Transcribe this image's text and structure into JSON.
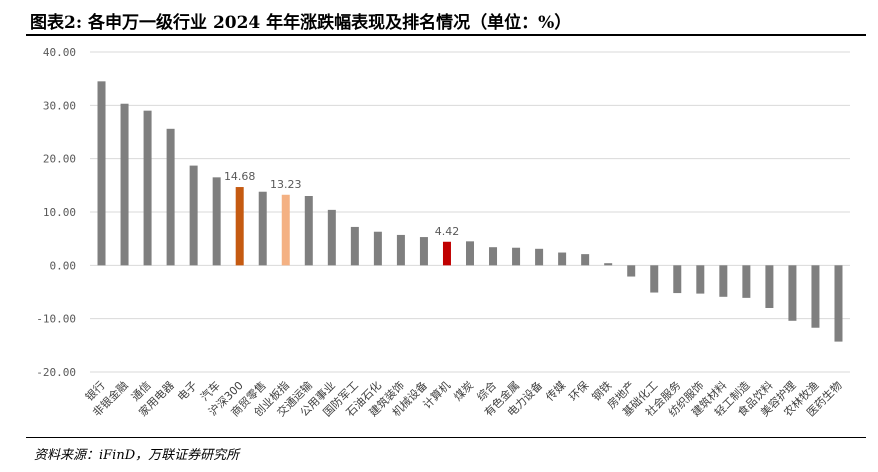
{
  "title": "图表2: 各申万一级行业 2024 年年涨跌幅表现及排名情况（单位：%）",
  "source": "资料来源：iFinD，万联证券研究所",
  "colors": {
    "default": "#7f7f7f",
    "highlight_dark": "#c55a11",
    "highlight_light": "#f4b183",
    "highlight_red": "#c00000",
    "gridline": "#d9d9d9",
    "text": "#595959"
  },
  "chart_data": {
    "type": "bar",
    "ylim": [
      -20,
      40
    ],
    "yticks": [
      "40.00",
      "30.00",
      "20.00",
      "10.00",
      "0.00",
      "-10.00",
      "-20.00"
    ],
    "ytick_values": [
      40,
      30,
      20,
      10,
      0,
      -10,
      -20
    ],
    "grid": true,
    "categories": [
      "银行",
      "非银金融",
      "通信",
      "家用电器",
      "电子",
      "汽车",
      "沪深300",
      "商贸零售",
      "创业板指",
      "交通运输",
      "公用事业",
      "国防军工",
      "石油石化",
      "建筑装饰",
      "机械设备",
      "计算机",
      "煤炭",
      "综合",
      "有色金属",
      "电力设备",
      "传媒",
      "环保",
      "钢铁",
      "房地产",
      "基础化工",
      "社会服务",
      "纺织服饰",
      "建筑材料",
      "轻工制造",
      "食品饮料",
      "美容护理",
      "农林牧渔",
      "医药生物"
    ],
    "values": [
      34.5,
      30.3,
      29.0,
      25.6,
      18.7,
      16.5,
      14.68,
      13.8,
      13.23,
      13.0,
      10.4,
      7.2,
      6.3,
      5.7,
      5.3,
      4.42,
      4.5,
      3.4,
      3.3,
      3.1,
      2.4,
      2.1,
      0.4,
      -2.1,
      -5.1,
      -5.2,
      -5.3,
      -5.9,
      -6.1,
      -8.0,
      -10.4,
      -11.7,
      -14.3
    ],
    "data_labels": [
      {
        "category": "沪深300",
        "text": "14.68"
      },
      {
        "category": "创业板指",
        "text": "13.23"
      },
      {
        "category": "计算机",
        "text": "4.42"
      }
    ],
    "highlights": {
      "沪深300": "highlight_dark",
      "创业板指": "highlight_light",
      "计算机": "highlight_red"
    }
  }
}
